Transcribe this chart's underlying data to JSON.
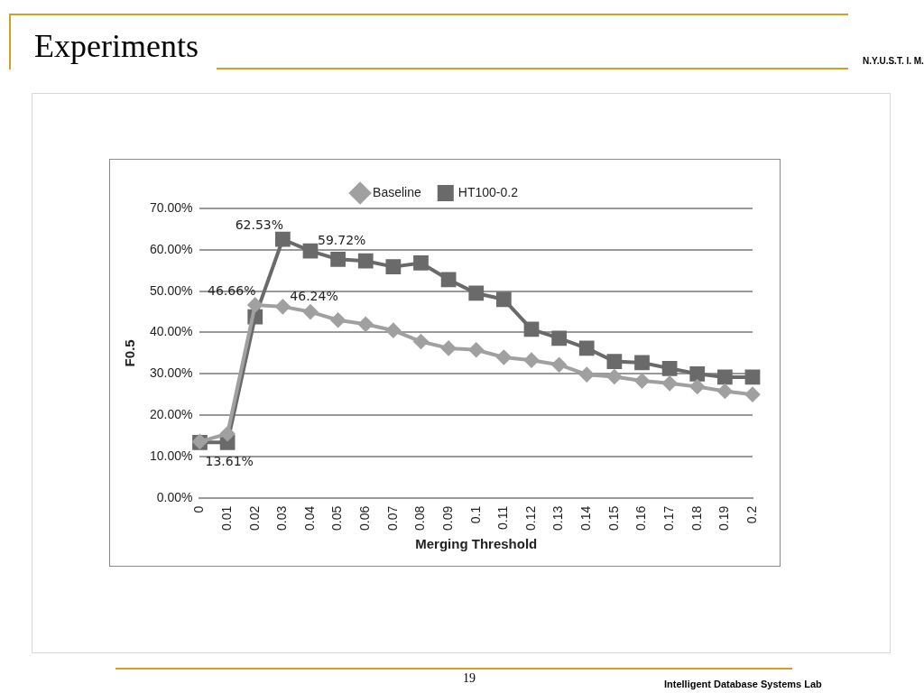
{
  "chart_data": {
    "type": "line",
    "title": "Experiments",
    "xlabel": "Merging Threshold",
    "ylabel": "F0.5",
    "categories": [
      "0",
      "0.01",
      "0.02",
      "0.03",
      "0.04",
      "0.05",
      "0.06",
      "0.07",
      "0.08",
      "0.09",
      "0.1",
      "0.11",
      "0.12",
      "0.13",
      "0.14",
      "0.15",
      "0.16",
      "0.17",
      "0.18",
      "0.19",
      "0.2"
    ],
    "series": [
      {
        "name": "Baseline",
        "color": "#a0a0a0",
        "marker": "diamond",
        "values": [
          13.61,
          15.5,
          46.66,
          46.24,
          45,
          43,
          42,
          40.5,
          37.8,
          36.2,
          35.8,
          34,
          33.3,
          32.2,
          29.8,
          29.3,
          28.3,
          27.7,
          26.9,
          25.8,
          25
        ],
        "value_labels": [
          "13.61%",
          null,
          "46.66%",
          "46.24%",
          null,
          null,
          null,
          null,
          null,
          null,
          null,
          null,
          null,
          null,
          null,
          null,
          null,
          null,
          null,
          null,
          null
        ]
      },
      {
        "name": "HT100-0.2",
        "color": "#6a6a6a",
        "marker": "square",
        "values": [
          13.4,
          13.4,
          43.8,
          62.53,
          59.72,
          57.7,
          57.3,
          55.9,
          56.8,
          52.8,
          49.5,
          48,
          40.8,
          38.6,
          36.2,
          33,
          32.7,
          31.3,
          30,
          29.2,
          29.2
        ],
        "value_labels": [
          null,
          null,
          null,
          "62.53%",
          "59.72%",
          null,
          null,
          null,
          null,
          null,
          null,
          null,
          null,
          null,
          null,
          null,
          null,
          null,
          null,
          null,
          null
        ]
      }
    ],
    "ylim": [
      0,
      70
    ],
    "yticks": [
      {
        "value": 0,
        "label": "0.00%"
      },
      {
        "value": 10,
        "label": "10.00%"
      },
      {
        "value": 20,
        "label": "20.00%"
      },
      {
        "value": 30,
        "label": "30.00%"
      },
      {
        "value": 40,
        "label": "40.00%"
      },
      {
        "value": 50,
        "label": "50.00%"
      },
      {
        "value": 60,
        "label": "60.00%"
      },
      {
        "value": 70,
        "label": "70.00%"
      }
    ],
    "grid": "y",
    "legend": "top",
    "line_style": "solid",
    "annotations": [
      "N.Y.U.S.T. I. M.",
      "19",
      "Intelligent Database Systems Lab"
    ]
  }
}
